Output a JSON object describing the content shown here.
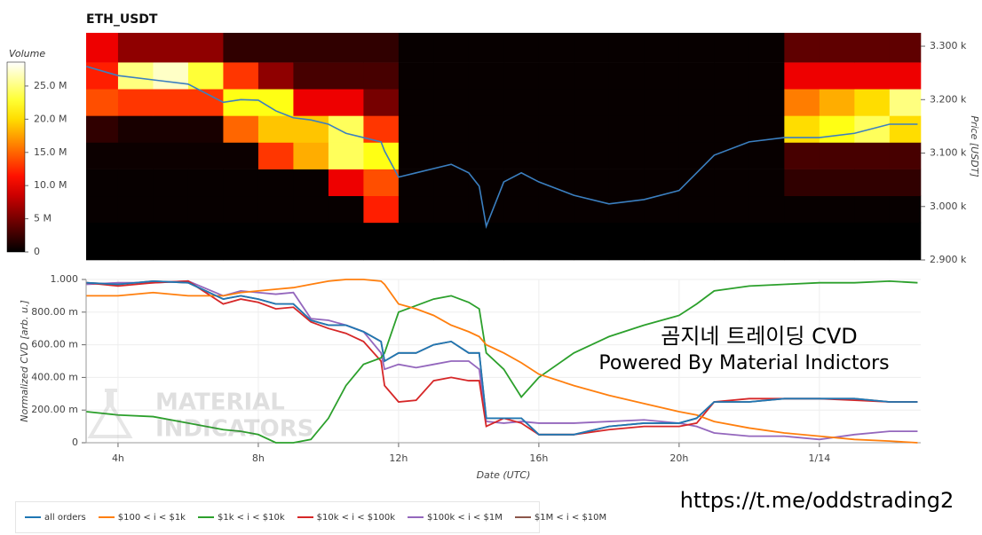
{
  "chart_data": [
    {
      "type": "heatmap",
      "title": "ETH_USDT",
      "ylabel": "Price [USDT]",
      "yaxis_position": "right",
      "xlim": [
        3.09,
        26.89
      ],
      "ylim": [
        2900,
        3325
      ],
      "yticks": [
        {
          "value": 2900,
          "label": "2.900 k"
        },
        {
          "value": 3000,
          "label": "3.000 k"
        },
        {
          "value": 3100,
          "label": "3.100 k"
        },
        {
          "value": 3200,
          "label": "3.200 k"
        },
        {
          "value": 3300,
          "label": "3.300 k"
        }
      ],
      "x_edges": [
        3.09,
        4,
        5,
        6,
        7,
        8,
        9,
        10,
        11,
        12,
        13,
        14,
        15,
        16,
        17,
        18,
        19,
        20,
        21,
        22,
        23,
        24,
        25,
        26,
        26.89
      ],
      "y_edges": [
        2900,
        2970,
        3020,
        3070,
        3120,
        3170,
        3220,
        3270,
        3325
      ],
      "z": [
        [
          0,
          0,
          0,
          0,
          0,
          0,
          0,
          0,
          0,
          0,
          0,
          0,
          0,
          0,
          0,
          0,
          0,
          0,
          0,
          0,
          0,
          0,
          0,
          0
        ],
        [
          300000.0,
          300000.0,
          300000.0,
          300000.0,
          300000.0,
          300000.0,
          300000.0,
          300000.0,
          12000000.0,
          300000.0,
          300000.0,
          300000.0,
          300000.0,
          300000.0,
          300000.0,
          300000.0,
          300000.0,
          300000.0,
          300000.0,
          300000.0,
          300000.0,
          300000.0,
          300000.0,
          300000.0
        ],
        [
          300000.0,
          300000.0,
          300000.0,
          300000.0,
          300000.0,
          300000.0,
          300000.0,
          10000000.0,
          14000000.0,
          300000.0,
          300000.0,
          300000.0,
          300000.0,
          300000.0,
          300000.0,
          300000.0,
          300000.0,
          300000.0,
          300000.0,
          300000.0,
          2000000.0,
          2000000.0,
          2000000.0,
          2000000.0
        ],
        [
          500000.0,
          500000.0,
          500000.0,
          500000.0,
          500000.0,
          13000000.0,
          18000000.0,
          24000000.0,
          22000000.0,
          300000.0,
          300000.0,
          300000.0,
          300000.0,
          300000.0,
          300000.0,
          300000.0,
          300000.0,
          300000.0,
          300000.0,
          300000.0,
          3000000.0,
          3000000.0,
          3000000.0,
          3000000.0
        ],
        [
          2000000.0,
          1000000.0,
          1000000.0,
          1000000.0,
          15000000.0,
          19000000.0,
          19000000.0,
          24000000.0,
          13000000.0,
          300000.0,
          300000.0,
          300000.0,
          300000.0,
          300000.0,
          300000.0,
          300000.0,
          300000.0,
          300000.0,
          300000.0,
          300000.0,
          20000000.0,
          22000000.0,
          24000000.0,
          20000000.0
        ],
        [
          14000000.0,
          13000000.0,
          13000000.0,
          13000000.0,
          22000000.0,
          22000000.0,
          10000000.0,
          10000000.0,
          5000000.0,
          300000.0,
          300000.0,
          300000.0,
          300000.0,
          300000.0,
          300000.0,
          300000.0,
          300000.0,
          300000.0,
          300000.0,
          300000.0,
          16000000.0,
          18000000.0,
          20000000.0,
          25000000.0
        ],
        [
          12000000.0,
          25000000.0,
          27000000.0,
          23000000.0,
          13000000.0,
          6000000.0,
          3000000.0,
          3000000.0,
          3000000.0,
          300000.0,
          300000.0,
          300000.0,
          300000.0,
          300000.0,
          300000.0,
          300000.0,
          300000.0,
          300000.0,
          300000.0,
          300000.0,
          10000000.0,
          10000000.0,
          10000000.0,
          10000000.0
        ],
        [
          10000000.0,
          6000000.0,
          6000000.0,
          6000000.0,
          2000000.0,
          2000000.0,
          2000000.0,
          2000000.0,
          2000000.0,
          300000.0,
          300000.0,
          300000.0,
          300000.0,
          300000.0,
          300000.0,
          300000.0,
          300000.0,
          300000.0,
          300000.0,
          300000.0,
          4000000.0,
          4000000.0,
          4000000.0,
          4000000.0
        ]
      ],
      "colormap": "hot",
      "colorbar": {
        "label": "Volume",
        "lim": [
          0,
          28600000.0
        ],
        "ticks": [
          0,
          {
            "value": 5000000.0,
            "label": "5 M"
          },
          {
            "value": 10000000.0,
            "label": "10.0 M"
          },
          {
            "value": 15000000.0,
            "label": "15.0 M"
          },
          {
            "value": 20000000.0,
            "label": "20.0 M"
          },
          {
            "value": 25000000.0,
            "label": "25.0 M"
          }
        ]
      },
      "line": {
        "color": "#3b7fc0",
        "x": [
          3.1,
          4,
          5,
          6,
          7,
          7.5,
          8,
          8.5,
          9,
          9.5,
          10,
          10.5,
          11,
          11.5,
          11.6,
          12,
          12.5,
          13,
          13.5,
          14,
          14.3,
          14.5,
          15,
          15.5,
          16,
          17,
          18,
          19,
          20,
          20.5,
          21,
          22,
          23,
          24,
          25,
          26,
          26.8
        ],
        "values": [
          3262,
          3245,
          3237,
          3229,
          3195,
          3200,
          3199,
          3179,
          3166,
          3162,
          3154,
          3137,
          3129,
          3121,
          3104,
          3055,
          3063,
          3071,
          3079,
          3063,
          3038,
          2963,
          3046,
          3063,
          3046,
          3021,
          3005,
          3013,
          3030,
          3063,
          3096,
          3121,
          3129,
          3129,
          3137,
          3154,
          3154
        ]
      }
    },
    {
      "type": "line",
      "xlabel": "Date (UTC)",
      "ylabel": "Normalized CVD [arb. u.]",
      "grid": true,
      "xlim": [
        3.09,
        26.89
      ],
      "ylim": [
        0,
        1
      ],
      "xticks": [
        {
          "value": 4,
          "label": "4h"
        },
        {
          "value": 8,
          "label": "8h"
        },
        {
          "value": 12,
          "label": "12h"
        },
        {
          "value": 16,
          "label": "16h"
        },
        {
          "value": 20,
          "label": "20h"
        },
        {
          "value": 24,
          "label": "1/14"
        }
      ],
      "yticks": [
        0,
        {
          "value": 0.2,
          "label": "200.00 m"
        },
        {
          "value": 0.4,
          "label": "400.00 m"
        },
        {
          "value": 0.6,
          "label": "600.00 m"
        },
        {
          "value": 0.8,
          "label": "800.00 m"
        },
        {
          "value": 1,
          "label": "1.000"
        }
      ],
      "x": [
        3.1,
        4,
        5,
        6,
        7,
        7.5,
        8,
        8.5,
        9,
        9.5,
        10,
        10.5,
        11,
        11.5,
        11.6,
        12,
        12.5,
        13,
        13.5,
        14,
        14.3,
        14.5,
        15,
        15.5,
        16,
        17,
        18,
        19,
        20,
        20.5,
        21,
        22,
        23,
        24,
        25,
        26,
        26.8
      ],
      "series": [
        {
          "name": "all orders",
          "color": "#1f77b4",
          "values": [
            0.98,
            0.97,
            0.99,
            0.98,
            0.88,
            0.9,
            0.88,
            0.85,
            0.85,
            0.75,
            0.72,
            0.72,
            0.68,
            0.62,
            0.5,
            0.55,
            0.55,
            0.6,
            0.62,
            0.55,
            0.55,
            0.15,
            0.15,
            0.15,
            0.05,
            0.05,
            0.1,
            0.12,
            0.12,
            0.15,
            0.25,
            0.25,
            0.27,
            0.27,
            0.27,
            0.25,
            0.25
          ]
        },
        {
          "name": "$100 < i < $1k",
          "color": "#ff7f0e",
          "values": [
            0.9,
            0.9,
            0.92,
            0.9,
            0.9,
            0.92,
            0.93,
            0.94,
            0.95,
            0.97,
            0.99,
            1,
            1,
            0.99,
            0.97,
            0.85,
            0.82,
            0.78,
            0.72,
            0.68,
            0.65,
            0.6,
            0.55,
            0.49,
            0.42,
            0.35,
            0.29,
            0.24,
            0.19,
            0.17,
            0.13,
            0.09,
            0.06,
            0.04,
            0.02,
            0.01,
            0
          ]
        },
        {
          "name": "$1k < i < $10k",
          "color": "#2ca02c",
          "values": [
            0.19,
            0.17,
            0.16,
            0.12,
            0.08,
            0.07,
            0.05,
            0,
            0,
            0.02,
            0.15,
            0.35,
            0.48,
            0.52,
            0.55,
            0.8,
            0.84,
            0.88,
            0.9,
            0.86,
            0.82,
            0.55,
            0.45,
            0.28,
            0.4,
            0.55,
            0.65,
            0.72,
            0.78,
            0.85,
            0.93,
            0.96,
            0.97,
            0.98,
            0.98,
            0.99,
            0.98
          ]
        },
        {
          "name": "$10k < i < $100k",
          "color": "#d62728",
          "values": [
            0.98,
            0.96,
            0.98,
            0.99,
            0.85,
            0.88,
            0.86,
            0.82,
            0.83,
            0.74,
            0.7,
            0.67,
            0.62,
            0.5,
            0.35,
            0.25,
            0.26,
            0.38,
            0.4,
            0.38,
            0.38,
            0.1,
            0.15,
            0.12,
            0.05,
            0.05,
            0.08,
            0.1,
            0.1,
            0.12,
            0.25,
            0.27,
            0.27,
            0.27,
            0.26,
            0.25,
            0.25
          ]
        },
        {
          "name": "$100k < i < $1M",
          "color": "#9467bd",
          "values": [
            0.97,
            0.98,
            0.98,
            0.99,
            0.9,
            0.93,
            0.92,
            0.91,
            0.92,
            0.76,
            0.75,
            0.72,
            0.68,
            0.55,
            0.45,
            0.48,
            0.46,
            0.48,
            0.5,
            0.5,
            0.45,
            0.13,
            0.12,
            0.13,
            0.12,
            0.12,
            0.13,
            0.14,
            0.12,
            0.1,
            0.06,
            0.04,
            0.04,
            0.02,
            0.05,
            0.07,
            0.07
          ]
        },
        {
          "name": "$1M < i < $10M",
          "color": "#8c564b",
          "values": [
            0.98,
            0.97,
            0.99,
            0.98,
            0.88,
            0.9,
            0.88,
            0.85,
            0.85,
            0.75,
            0.72,
            0.72,
            0.68,
            0.62,
            0.5,
            0.55,
            0.55,
            0.6,
            0.62,
            0.55,
            0.55,
            0.15,
            0.15,
            0.15,
            0.05,
            0.05,
            0.1,
            0.12,
            0.12,
            0.15,
            0.25,
            0.25,
            0.27,
            0.27,
            0.27,
            0.25,
            0.25
          ]
        }
      ],
      "watermark": [
        "MATERIAL",
        "INDICATORS"
      ],
      "annotations": [
        "곰지네 트레이딩 CVD",
        "Powered By Material Indictors",
        "https://t.me/oddstrading2"
      ]
    }
  ]
}
